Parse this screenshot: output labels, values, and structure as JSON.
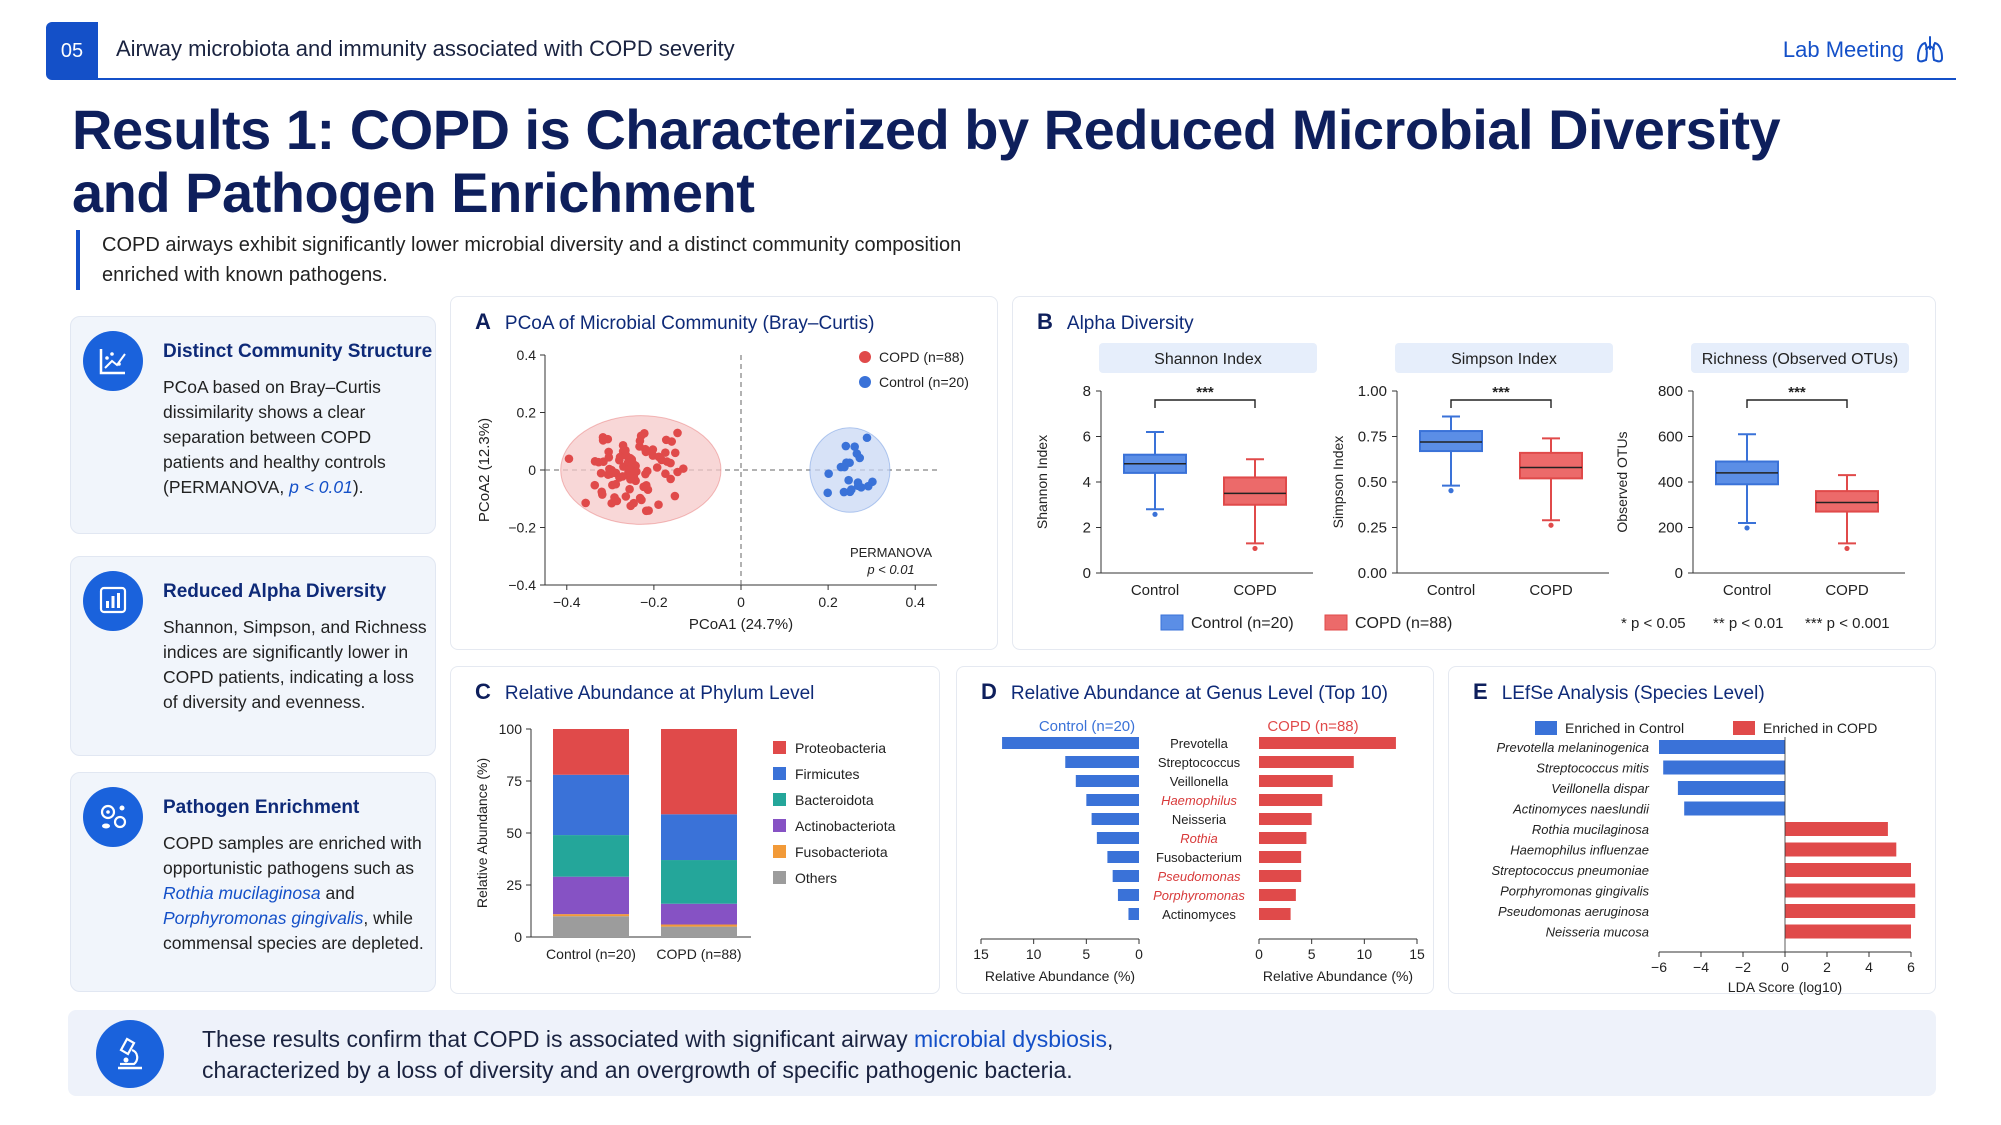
{
  "header": {
    "slide_num": "05",
    "topic": "Airway microbiota and immunity associated with COPD severity",
    "right_label": "Lab Meeting",
    "right_icon": "lungs-icon"
  },
  "title": "Results 1: COPD is Characterized by Reduced Microbial Diversity and Pathogen Enrichment",
  "subtitle_line1": "COPD airways exhibit significantly lower microbial diversity and a distinct community composition",
  "subtitle_line2": "enriched with known pathogens.",
  "cards": [
    {
      "icon": "scatter-chart-icon",
      "title": "Distinct Community Structure",
      "text": "PCoA based on Bray–Curtis dissimilarity shows a clear separation between COPD patients and healthy controls (PERMANOVA, ",
      "pval": "p < 0.01",
      "end": ")."
    },
    {
      "icon": "bar-chart-icon",
      "title": "Reduced Alpha Diversity",
      "text": "Shannon, Simpson, and Richness indices are significantly lower in COPD patients, indicating a loss of diversity and evenness."
    },
    {
      "icon": "bacteria-icon",
      "title": "Pathogen Enrichment",
      "t1": "COPD samples are enriched with opportunistic pathogens such as ",
      "sp1": "Rothia mucilaginosa",
      "t2": " and ",
      "sp2": "Porphyromonas gingivalis",
      "t3": ", while commensal species are depleted."
    }
  ],
  "panels": {
    "A": {
      "letter": "A",
      "title": "PCoA of Microbial Community (Bray–Curtis)"
    },
    "B": {
      "letter": "B",
      "title": "Alpha Diversity"
    },
    "C": {
      "letter": "C",
      "title": "Relative Abundance at Phylum Level"
    },
    "D": {
      "letter": "D",
      "title": "Relative Abundance at Genus Level (Top 10)"
    },
    "E": {
      "letter": "E",
      "title": "LEfSe Analysis (Species Level)"
    }
  },
  "colors": {
    "copd": "#e04a4a",
    "control": "#3a72d8",
    "navy": "#0e2a78"
  },
  "chart_data": [
    {
      "id": "A",
      "type": "scatter",
      "xlabel": "PCoA1 (24.7%)",
      "ylabel": "PCoA2 (12.3%)",
      "xlim": [
        -0.45,
        0.45
      ],
      "ylim": [
        -0.4,
        0.4
      ],
      "xticks": [
        -0.4,
        -0.2,
        0,
        0.2,
        0.4
      ],
      "xtick_labels": [
        "−0.4",
        "−0.2",
        "0",
        "0.2",
        "0.4"
      ],
      "yticks": [
        0.4,
        0.2,
        0,
        -0.2,
        -0.4
      ],
      "ytick_labels": [
        "0.4",
        "0.2",
        "0",
        "−0.2",
        "−0.4"
      ],
      "legend": [
        "COPD (n=88)",
        "Control (n=20)"
      ],
      "annotation": [
        "PERMANOVA",
        "p < 0.01"
      ],
      "series": [
        {
          "name": "COPD (n=88)",
          "center": [
            -0.23,
            0.0
          ],
          "spread": [
            0.08,
            0.09
          ],
          "n": 88
        },
        {
          "name": "Control (n=20)",
          "center": [
            0.25,
            0.0
          ],
          "spread": [
            0.04,
            0.07
          ],
          "n": 20
        }
      ]
    },
    {
      "id": "B1",
      "type": "box",
      "title": "Shannon Index",
      "ylabel": "Shannon Index",
      "ylim": [
        0,
        8
      ],
      "yticks": [
        0,
        2,
        4,
        6,
        8
      ],
      "ytick_labels": [
        "0",
        "2",
        "4",
        "6",
        "8"
      ],
      "categories": [
        "Control",
        "COPD"
      ],
      "sig": "***",
      "boxes": [
        {
          "min": 2.8,
          "q1": 4.4,
          "median": 4.8,
          "q3": 5.2,
          "max": 6.2
        },
        {
          "min": 1.3,
          "q1": 3.0,
          "median": 3.5,
          "q3": 4.2,
          "max": 5.0
        }
      ]
    },
    {
      "id": "B2",
      "type": "box",
      "title": "Simpson Index",
      "ylabel": "Simpson Index",
      "ylim": [
        0,
        1
      ],
      "yticks": [
        0,
        0.25,
        0.5,
        0.75,
        1
      ],
      "ytick_labels": [
        "0.00",
        "0.25",
        "0.50",
        "0.75",
        "1.00"
      ],
      "categories": [
        "Control",
        "COPD"
      ],
      "sig": "***",
      "boxes": [
        {
          "min": 0.48,
          "q1": 0.67,
          "median": 0.72,
          "q3": 0.78,
          "max": 0.86
        },
        {
          "min": 0.29,
          "q1": 0.52,
          "median": 0.58,
          "q3": 0.66,
          "max": 0.74
        }
      ]
    },
    {
      "id": "B3",
      "type": "box",
      "title": "Richness (Observed OTUs)",
      "ylabel": "Observed OTUs",
      "ylim": [
        0,
        800
      ],
      "yticks": [
        0,
        200,
        400,
        600,
        800
      ],
      "ytick_labels": [
        "0",
        "200",
        "400",
        "600",
        "800"
      ],
      "categories": [
        "Control",
        "COPD"
      ],
      "sig": "***",
      "boxes": [
        {
          "min": 220,
          "q1": 390,
          "median": 440,
          "q3": 490,
          "max": 610
        },
        {
          "min": 130,
          "q1": 270,
          "median": 310,
          "q3": 360,
          "max": 430
        }
      ]
    },
    {
      "id": "B-legend",
      "type": "legend",
      "items": [
        "Control (n=20)",
        "COPD (n=88)"
      ],
      "significance_note": [
        "* p < 0.05",
        "** p < 0.01",
        "*** p < 0.001"
      ]
    },
    {
      "id": "C",
      "type": "bar",
      "stacked": true,
      "ylabel": "Relative Abundance (%)",
      "ylim": [
        0,
        100
      ],
      "yticks": [
        0,
        25,
        50,
        75,
        100
      ],
      "categories": [
        "Control (n=20)",
        "COPD (n=88)"
      ],
      "series": [
        {
          "name": "Others",
          "values": [
            10,
            5
          ]
        },
        {
          "name": "Fusobacteriota",
          "values": [
            1,
            1
          ]
        },
        {
          "name": "Actinobacteriota",
          "values": [
            18,
            10
          ]
        },
        {
          "name": "Bacteroidota",
          "values": [
            20,
            21
          ]
        },
        {
          "name": "Firmicutes",
          "values": [
            29,
            22
          ]
        },
        {
          "name": "Proteobacteria",
          "values": [
            22,
            41
          ]
        }
      ],
      "series_colors": [
        "#9c9c9c",
        "#f29a38",
        "#8652c4",
        "#24a69a",
        "#3a72d8",
        "#e04a4a"
      ],
      "legend_order": [
        "Proteobacteria",
        "Firmicutes",
        "Bacteroidota",
        "Actinobacteriota",
        "Fusobacteriota",
        "Others"
      ]
    },
    {
      "id": "D",
      "type": "bar",
      "orientation": "butterfly",
      "xlabel_left": "Relative Abundance (%)",
      "xlabel_right": "Relative Abundance (%)",
      "left_title": "Control (n=20)",
      "right_title": "COPD (n=88)",
      "xlim": [
        0,
        15
      ],
      "xticks": [
        15,
        10,
        5,
        0
      ],
      "categories": [
        "Prevotella",
        "Streptococcus",
        "Veillonella",
        "Haemophilus",
        "Neisseria",
        "Rothia",
        "Fusobacterium",
        "Pseudomonas",
        "Porphyromonas",
        "Actinomyces"
      ],
      "highlighted": [
        "Haemophilus",
        "Rothia",
        "Pseudomonas",
        "Porphyromonas"
      ],
      "series": [
        {
          "name": "Control (n=20)",
          "values": [
            13,
            7,
            6,
            5,
            4.5,
            4,
            3,
            2.5,
            2,
            1
          ]
        },
        {
          "name": "COPD (n=88)",
          "values": [
            13,
            9,
            7,
            6,
            5,
            4.5,
            4,
            4,
            3.5,
            3
          ]
        }
      ]
    },
    {
      "id": "E",
      "type": "bar",
      "orientation": "horizontal",
      "xlabel": "LDA Score (log10)",
      "xlim": [
        -6,
        6
      ],
      "xticks": [
        -6,
        -4,
        -2,
        0,
        2,
        4,
        6
      ],
      "xtick_labels": [
        "−6",
        "−4",
        "−2",
        "0",
        "2",
        "4",
        "6"
      ],
      "legend": [
        "Enriched in Control",
        "Enriched in COPD"
      ],
      "categories": [
        "Prevotella melaninogenica",
        "Streptococcus mitis",
        "Veillonella dispar",
        "Actinomyces naeslundii",
        "Rothia mucilaginosa",
        "Haemophilus influenzae",
        "Streptococcus pneumoniae",
        "Porphyromonas gingivalis",
        "Pseudomonas aeruginosa",
        "Neisseria mucosa"
      ],
      "values": [
        -6.0,
        -5.8,
        -5.1,
        -4.8,
        4.9,
        5.3,
        6.0,
        6.2,
        6.2,
        6.0
      ]
    }
  ],
  "conclusion": {
    "icon": "microscope-icon",
    "t1": "These results confirm that COPD is associated with significant airway ",
    "highlight": "microbial dysbiosis",
    "t2": ",",
    "line2": "characterized by a loss of diversity and an overgrowth of specific pathogenic bacteria."
  }
}
